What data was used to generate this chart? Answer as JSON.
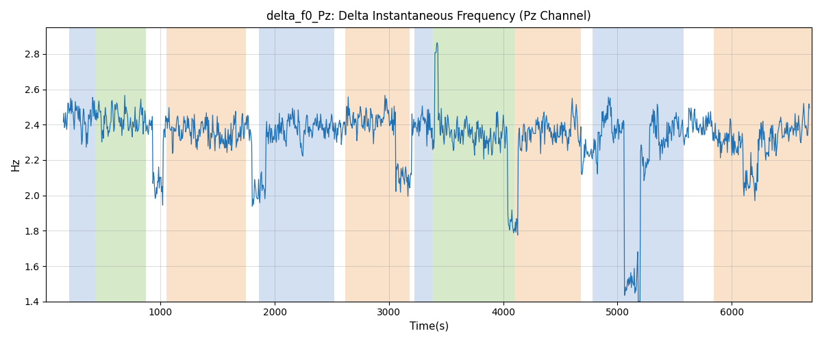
{
  "title": "delta_f0_Pz: Delta Instantaneous Frequency (Pz Channel)",
  "xlabel": "Time(s)",
  "ylabel": "Hz",
  "ylim": [
    1.4,
    2.95
  ],
  "xlim": [
    0,
    6700
  ],
  "line_color": "#2171b5",
  "line_width": 0.9,
  "bands": [
    {
      "xmin": 200,
      "xmax": 430,
      "color": "#adc8e8",
      "alpha": 0.55
    },
    {
      "xmin": 430,
      "xmax": 870,
      "color": "#b5d9a0",
      "alpha": 0.55
    },
    {
      "xmin": 1050,
      "xmax": 1750,
      "color": "#f5c9a0",
      "alpha": 0.55
    },
    {
      "xmin": 1860,
      "xmax": 2520,
      "color": "#adc8e8",
      "alpha": 0.55
    },
    {
      "xmin": 2620,
      "xmax": 2730,
      "color": "#f5c9a0",
      "alpha": 0.55
    },
    {
      "xmin": 2730,
      "xmax": 3180,
      "color": "#f5c9a0",
      "alpha": 0.55
    },
    {
      "xmin": 3220,
      "xmax": 3380,
      "color": "#adc8e8",
      "alpha": 0.55
    },
    {
      "xmin": 3380,
      "xmax": 3600,
      "color": "#b5d9a0",
      "alpha": 0.55
    },
    {
      "xmin": 3600,
      "xmax": 4100,
      "color": "#b5d9a0",
      "alpha": 0.55
    },
    {
      "xmin": 4100,
      "xmax": 4680,
      "color": "#f5c9a0",
      "alpha": 0.55
    },
    {
      "xmin": 4780,
      "xmax": 5580,
      "color": "#adc8e8",
      "alpha": 0.55
    },
    {
      "xmin": 5840,
      "xmax": 6300,
      "color": "#f5c9a0",
      "alpha": 0.55
    },
    {
      "xmin": 6300,
      "xmax": 6700,
      "color": "#f5c9a0",
      "alpha": 0.55
    }
  ],
  "xticks": [
    1000,
    2000,
    3000,
    4000,
    5000,
    6000
  ],
  "yticks": [
    1.4,
    1.6,
    1.8,
    2.0,
    2.2,
    2.4,
    2.6,
    2.8
  ]
}
